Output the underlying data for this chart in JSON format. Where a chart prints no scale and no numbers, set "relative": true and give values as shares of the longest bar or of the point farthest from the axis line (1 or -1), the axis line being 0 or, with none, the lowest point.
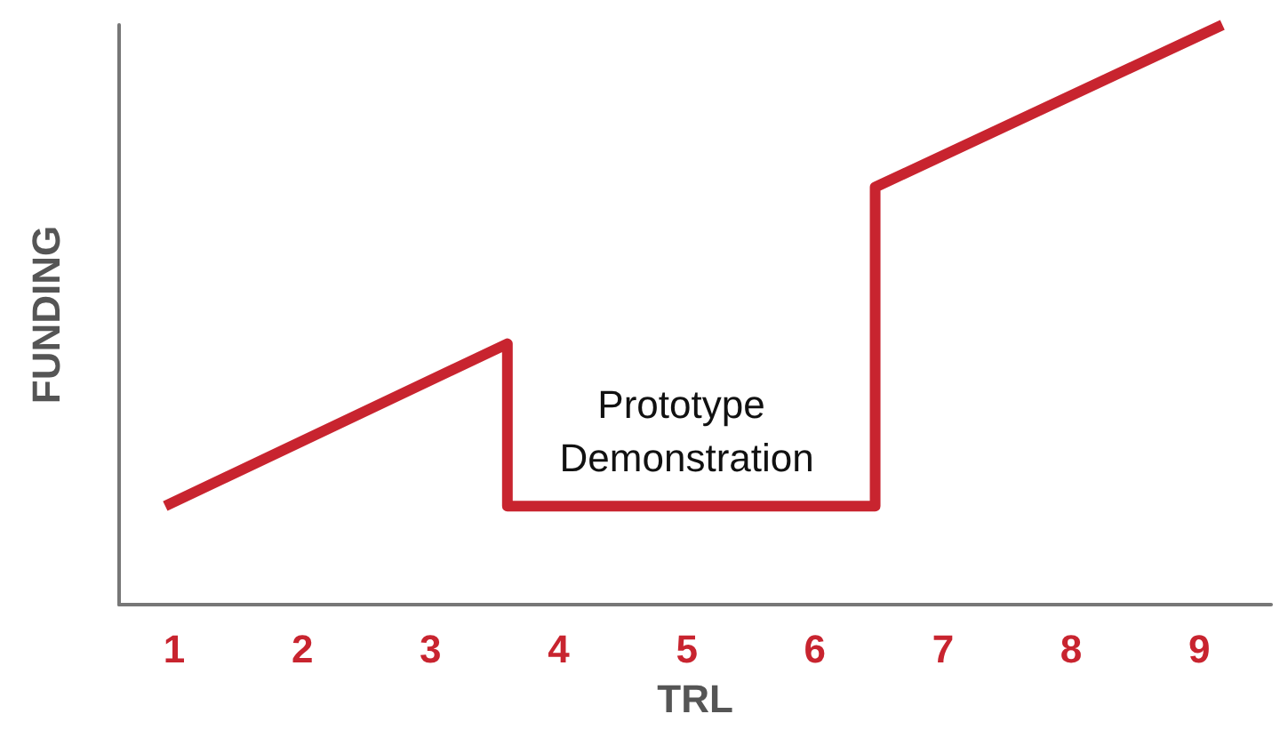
{
  "chart_data": {
    "type": "line",
    "xlabel": "TRL",
    "ylabel": "FUNDING",
    "relative": true,
    "xlim": [
      0.57,
      9.56
    ],
    "xticks": [
      1,
      2,
      3,
      4,
      5,
      6,
      7,
      8,
      9
    ],
    "series": [
      {
        "color": "#c8242f",
        "x": [
          0.93,
          3.6,
          3.6,
          6.47,
          6.47,
          9.18
        ],
        "values": [
          0.17,
          0.45,
          0.17,
          0.17,
          0.72,
          1
        ]
      }
    ],
    "annotations": [
      {
        "text": "Prototype Demonstration",
        "x": 5,
        "y": 0.17
      }
    ],
    "grid": false,
    "marker": "none",
    "line_style": "solid"
  }
}
